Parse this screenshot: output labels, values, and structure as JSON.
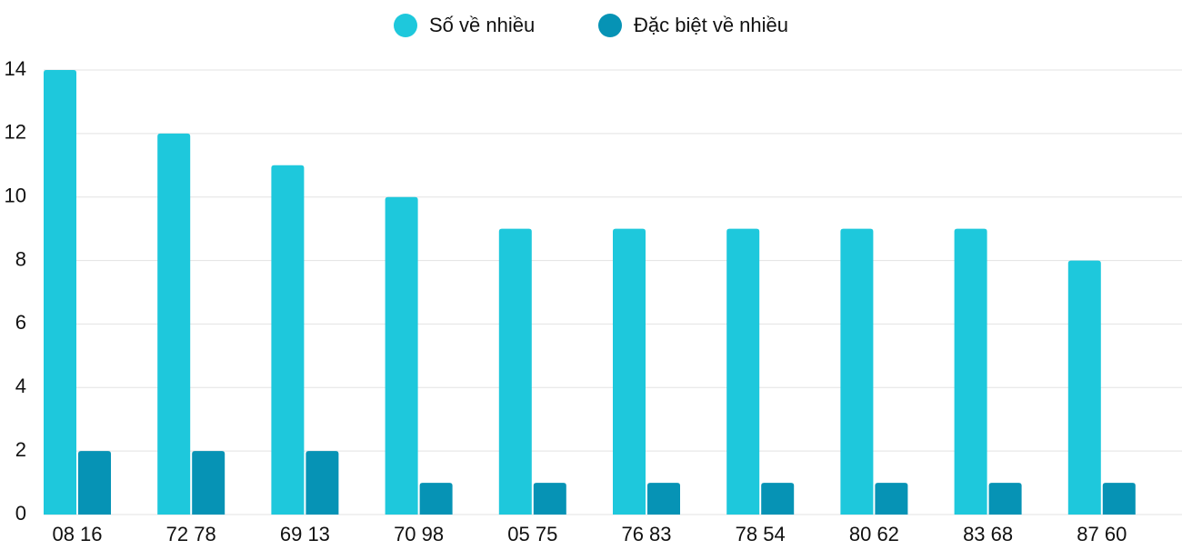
{
  "chart_data": {
    "type": "bar",
    "categories": [
      "08 16",
      "72 78",
      "69 13",
      "70 98",
      "05 75",
      "76 83",
      "78 54",
      "80 62",
      "83 68",
      "87 60"
    ],
    "series": [
      {
        "name": "Số về nhiều",
        "color": "#1ec8dc",
        "values": [
          14,
          12,
          11,
          10,
          9,
          9,
          9,
          9,
          9,
          8
        ]
      },
      {
        "name": "Đặc biệt về nhiều",
        "color": "#0693b5",
        "values": [
          2,
          2,
          2,
          1,
          1,
          1,
          1,
          1,
          1,
          1
        ]
      }
    ],
    "ylim": [
      0,
      14
    ],
    "yticks": [
      0,
      2,
      4,
      6,
      8,
      10,
      12,
      14
    ],
    "grid": true,
    "legend": "top"
  }
}
